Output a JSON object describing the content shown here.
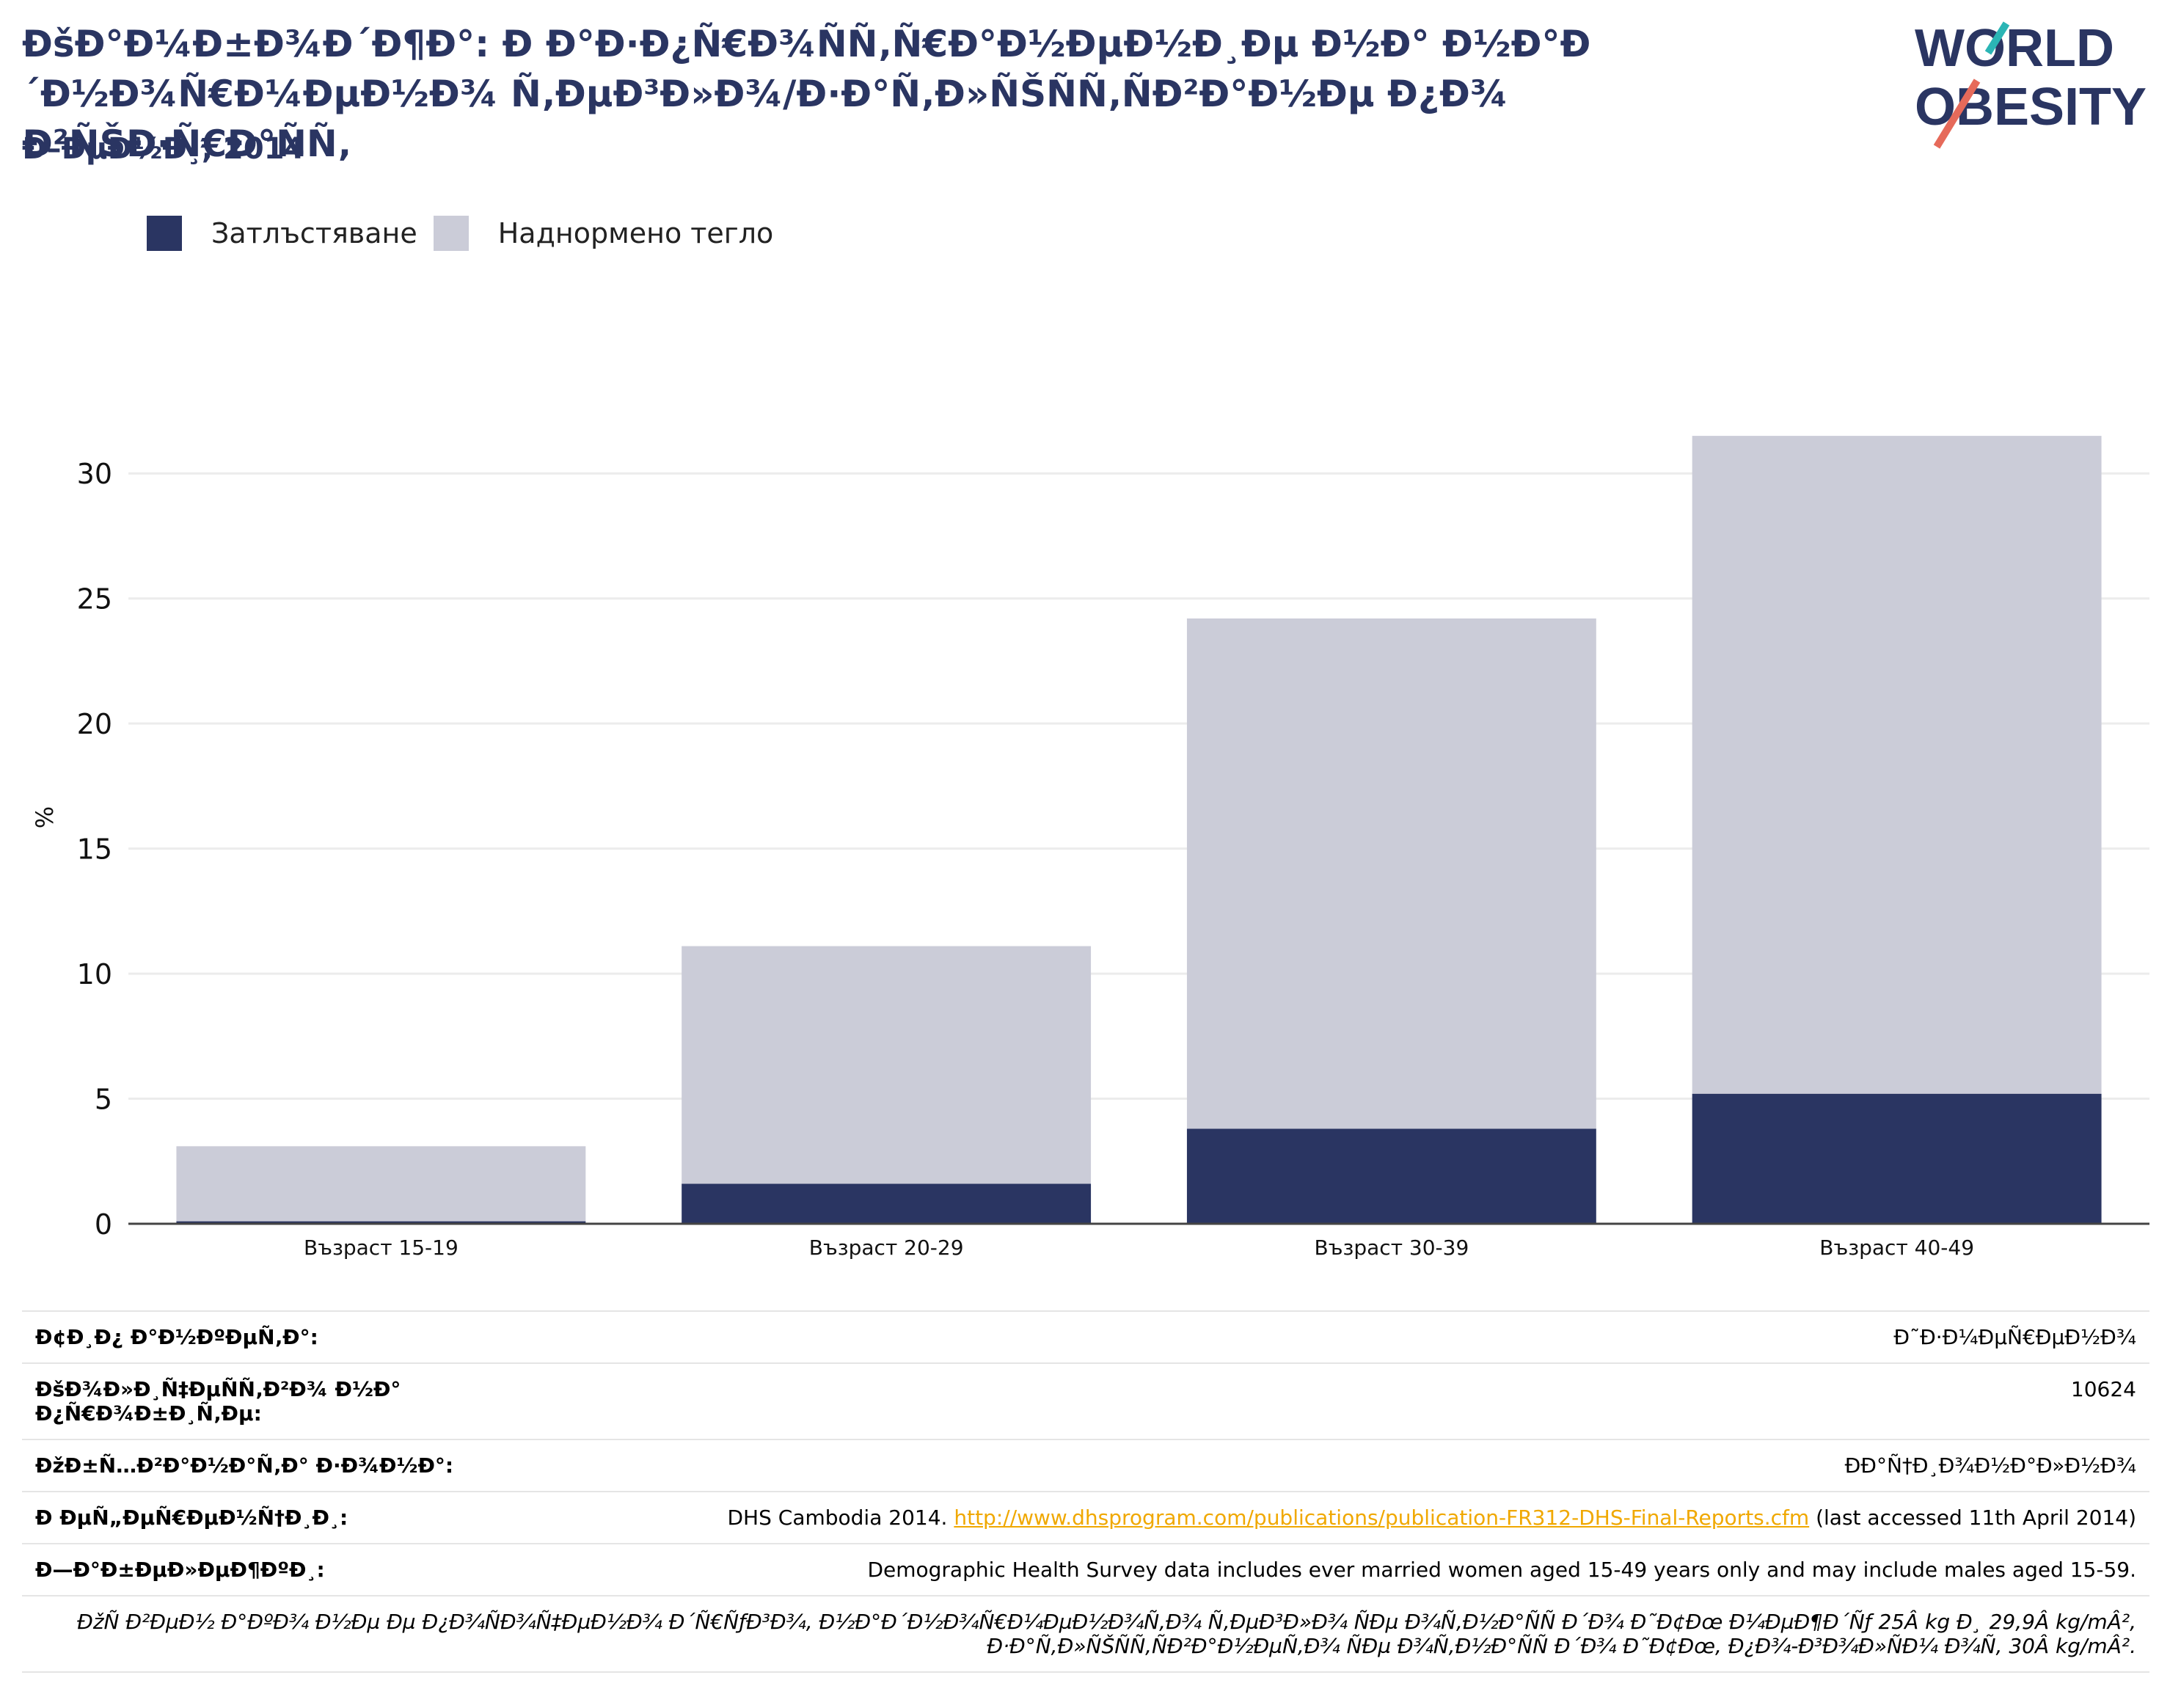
{
  "header": {
    "title": "ÐšÐ°Ð¼Ð±Ð¾Ð´Ð¶Ð°: Ð  Ð°Ð·Ð¿Ñ€Ð¾ÑÑ‚Ñ€Ð°Ð½ÐµÐ½Ð¸Ðµ Ð½Ð° Ð½Ð°Ð´Ð½Ð¾Ñ€Ð¼ÐµÐ½Ð¾ Ñ‚ÐµÐ³Ð»Ð¾/Ð·Ð°Ñ‚Ð»ÑŠÑÑ‚ÑÐ²Ð°Ð½Ðµ Ð¿Ð¾ Ð²ÑŠÐ·Ñ€Ð°ÑÑ‚",
    "subtitle": "Ð–ÐµÐ½Ð¸, 2014"
  },
  "logo": {
    "line1": "WORLD",
    "line2": "OBESITY"
  },
  "legend": [
    {
      "label": "Затлъстяване",
      "color": "#2a3562"
    },
    {
      "label": "Наднормено тегло",
      "color": "#cbccd8"
    }
  ],
  "chart_data": {
    "type": "bar",
    "stacked": true,
    "categories": [
      "Възраст 15-19",
      "Възраст 20-29",
      "Възраст 30-39",
      "Възраст 40-49"
    ],
    "series": [
      {
        "name": "Затлъстяване",
        "values": [
          0.1,
          1.6,
          3.8,
          5.2
        ],
        "color": "#2a3562"
      },
      {
        "name": "Наднормено тегло",
        "values": [
          3.0,
          9.5,
          20.4,
          26.3
        ],
        "color": "#cbccd8"
      }
    ],
    "ylabel": "%",
    "xlabel": "",
    "yticks": [
      0,
      5,
      10,
      15,
      20,
      25,
      30
    ],
    "ylim": [
      0,
      32.5
    ],
    "grid": true
  },
  "meta": [
    {
      "key": "Ð¢Ð¸Ð¿ Ð°Ð½ÐºÐµÑ‚Ð°:",
      "value": "Ð˜Ð·Ð¼ÐµÑ€ÐµÐ½Ð¾"
    },
    {
      "key": "ÐšÐ¾Ð»Ð¸Ñ‡ÐµÑÑ‚Ð²Ð¾ Ð½Ð° Ð¿Ñ€Ð¾Ð±Ð¸Ñ‚Ðµ:",
      "value": "10624"
    },
    {
      "key": "ÐžÐ±Ñ…Ð²Ð°Ð½Ð°Ñ‚Ð° Ð·Ð¾Ð½Ð°:",
      "value": "ÐÐ°Ñ†Ð¸Ð¾Ð½Ð°Ð»Ð½Ð¾"
    },
    {
      "key": "Ð ÐµÑ„ÐµÑ€ÐµÐ½Ñ†Ð¸Ð¸:",
      "ref_text": "DHS Cambodia 2014. ",
      "ref_link": "http://www.dhsprogram.com/publications/publication-FR312-DHS-Final-Reports.cfm",
      "ref_suffix": " (last accessed 11th April 2014)"
    },
    {
      "key": "Ð—Ð°Ð±ÐµÐ»ÐµÐ¶ÐºÐ¸:",
      "value": "Demographic Health Survey data includes ever married women aged 15-49 years only and may include males aged 15-59."
    }
  ],
  "footnote": "ÐžÑ Ð²ÐµÐ½ Ð°ÐºÐ¾ Ð½Ðµ Ðµ Ð¿Ð¾ÑÐ¾Ñ‡ÐµÐ½Ð¾ Ð´Ñ€ÑƒÐ³Ð¾, Ð½Ð°Ð´Ð½Ð¾Ñ€Ð¼ÐµÐ½Ð¾Ñ‚Ð¾ Ñ‚ÐµÐ³Ð»Ð¾ ÑÐµ Ð¾Ñ‚Ð½Ð°ÑÑ Ð´Ð¾ Ð˜Ð¢Ðœ Ð¼ÐµÐ¶Ð´Ñƒ 25Â kg Ð¸ 29,9Â kg/mÂ², Ð·Ð°Ñ‚Ð»ÑŠÑÑ‚ÑÐ²Ð°Ð½ÐµÑ‚Ð¾ ÑÐµ Ð¾Ñ‚Ð½Ð°ÑÑ Ð´Ð¾ Ð˜Ð¢Ðœ, Ð¿Ð¾-Ð³Ð¾Ð»ÑÐ¼ Ð¾Ñ‚ 30Â kg/mÂ²."
}
